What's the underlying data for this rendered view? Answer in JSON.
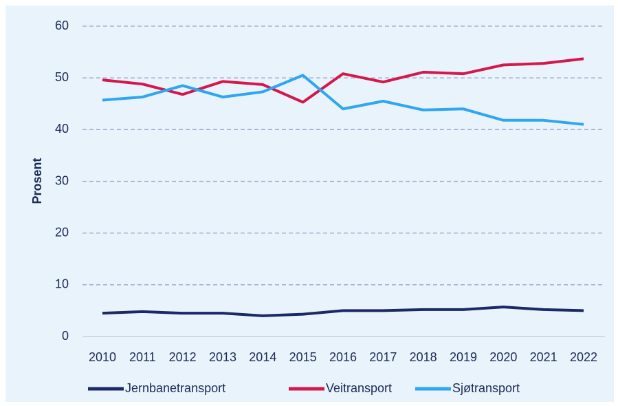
{
  "chart_data": {
    "type": "line",
    "ylabel": "Prosent",
    "categories": [
      "2010",
      "2011",
      "2012",
      "2013",
      "2014",
      "2015",
      "2016",
      "2017",
      "2018",
      "2019",
      "2020",
      "2021",
      "2022"
    ],
    "series": [
      {
        "name": "Jernbanetransport",
        "color": "#1b2a66",
        "values": [
          4.5,
          4.8,
          4.5,
          4.5,
          4.0,
          4.3,
          5.0,
          5.0,
          5.2,
          5.2,
          5.7,
          5.2,
          5.0
        ]
      },
      {
        "name": "Veitransport",
        "color": "#d4184c",
        "values": [
          49.6,
          48.8,
          46.8,
          49.3,
          48.7,
          45.3,
          50.8,
          49.2,
          51.1,
          50.8,
          52.5,
          52.8,
          53.7
        ]
      },
      {
        "name": "Sjøtransport",
        "color": "#2ea6f0",
        "values": [
          45.7,
          46.3,
          48.5,
          46.3,
          47.3,
          50.5,
          44.0,
          45.5,
          43.8,
          44.0,
          41.8,
          41.8,
          41.0
        ]
      }
    ],
    "ylim": [
      0,
      60
    ],
    "yticks": [
      0,
      10,
      20,
      30,
      40,
      50,
      60
    ],
    "grid": true,
    "legend": "bottom"
  }
}
